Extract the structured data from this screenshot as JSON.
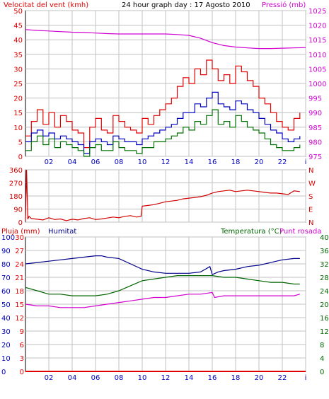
{
  "colors": {
    "wind": "#e00000",
    "gust": "#e00000",
    "avg": "#0000c0",
    "pressure": "#d000d0",
    "dir": "#d00000",
    "humidity": "#00008a",
    "temperature": "#006400",
    "dewpoint": "#d000d0",
    "rain": "#e00000",
    "grid": "#c0c0c0",
    "frame": "#000000"
  },
  "header": {
    "wind_title": "Velocitat del vent (kmh)",
    "center_title": "24 hour graph day : 17 Agosto 2010",
    "pressure_title": "Pressió (mb)"
  },
  "bottom_header": {
    "rain_title": "Pluja (mm)",
    "humidity_title": "Humitat",
    "temp_title": "Temperatura (°C)",
    "dew_title": "Punt rosada"
  },
  "x_ticks": [
    "02",
    "04",
    "06",
    "08",
    "10",
    "12",
    "14",
    "16",
    "18",
    "20",
    "22",
    "i"
  ],
  "chart_data": [
    {
      "type": "line",
      "panel": "wind",
      "x_range_hours": [
        0,
        24
      ],
      "grid": true,
      "y_left": {
        "label": "Velocitat del vent (kmh)",
        "range": [
          0,
          50
        ],
        "ticks": [
          "50",
          "45",
          "40",
          "35",
          "30",
          "25",
          "20",
          "15",
          "10",
          "5",
          "0"
        ]
      },
      "y_right": {
        "label": "Pressió (mb)",
        "range": [
          975,
          1025
        ],
        "ticks": [
          "1025",
          "1020",
          "1015",
          "1010",
          "1005",
          "1000",
          "995",
          "990",
          "985",
          "980",
          "975"
        ]
      },
      "series": [
        {
          "name": "gust",
          "axis": "left",
          "x": [
            0,
            0.5,
            1,
            1.5,
            2,
            2.5,
            3,
            3.5,
            4,
            4.5,
            5,
            5.5,
            6,
            6.5,
            7,
            7.5,
            8,
            8.5,
            9,
            9.5,
            10,
            10.5,
            11,
            11.5,
            12,
            12.5,
            13,
            13.5,
            14,
            14.5,
            15,
            15.5,
            16,
            16.5,
            17,
            17.5,
            18,
            18.5,
            19,
            19.5,
            20,
            20.5,
            21,
            21.5,
            22,
            22.5,
            23,
            23.5
          ],
          "values": [
            7,
            12,
            16,
            11,
            15,
            10,
            14,
            12,
            9,
            8,
            3,
            10,
            13,
            9,
            8,
            14,
            12,
            10,
            9,
            8,
            13,
            11,
            14,
            16,
            18,
            20,
            24,
            27,
            25,
            30,
            28,
            33,
            30,
            26,
            28,
            25,
            31,
            29,
            26,
            24,
            20,
            18,
            15,
            12,
            10,
            9,
            13,
            15
          ]
        },
        {
          "name": "avg",
          "axis": "left",
          "x": [
            0,
            0.5,
            1,
            1.5,
            2,
            2.5,
            3,
            3.5,
            4,
            4.5,
            5,
            5.5,
            6,
            6.5,
            7,
            7.5,
            8,
            8.5,
            9,
            9.5,
            10,
            10.5,
            11,
            11.5,
            12,
            12.5,
            13,
            13.5,
            14,
            14.5,
            15,
            15.5,
            16,
            16.5,
            17,
            17.5,
            18,
            18.5,
            19,
            19.5,
            20,
            20.5,
            21,
            21.5,
            22,
            22.5,
            23,
            23.5
          ],
          "values": [
            5,
            8,
            9,
            7,
            8,
            6,
            7,
            6,
            5,
            4,
            1,
            5,
            6,
            5,
            4,
            7,
            6,
            5,
            5,
            4,
            6,
            7,
            8,
            9,
            10,
            11,
            13,
            15,
            15,
            18,
            17,
            20,
            22,
            18,
            17,
            16,
            19,
            18,
            16,
            15,
            13,
            11,
            9,
            8,
            6,
            5,
            6,
            7
          ]
        },
        {
          "name": "wind",
          "axis": "left",
          "x": [
            0,
            0.5,
            1,
            1.5,
            2,
            2.5,
            3,
            3.5,
            4,
            4.5,
            5,
            5.5,
            6,
            6.5,
            7,
            7.5,
            8,
            8.5,
            9,
            9.5,
            10,
            10.5,
            11,
            11.5,
            12,
            12.5,
            13,
            13.5,
            14,
            14.5,
            15,
            15.5,
            16,
            16.5,
            17,
            17.5,
            18,
            18.5,
            19,
            19.5,
            20,
            20.5,
            21,
            21.5,
            22,
            22.5,
            23,
            23.5
          ],
          "values": [
            2,
            5,
            7,
            4,
            6,
            3,
            5,
            4,
            3,
            2,
            0,
            3,
            4,
            2,
            2,
            5,
            3,
            2,
            2,
            1,
            3,
            3,
            5,
            5,
            6,
            7,
            8,
            10,
            9,
            12,
            11,
            14,
            16,
            11,
            12,
            10,
            14,
            12,
            10,
            9,
            8,
            6,
            4,
            3,
            2,
            2,
            3,
            4
          ]
        },
        {
          "name": "pressure",
          "axis": "right",
          "x": [
            0,
            1,
            2,
            3,
            4,
            5,
            6,
            7,
            8,
            9,
            10,
            11,
            12,
            13,
            14,
            15,
            16,
            17,
            18,
            19,
            20,
            21,
            22,
            23,
            24
          ],
          "values": [
            1018.5,
            1018.2,
            1018,
            1017.8,
            1017.6,
            1017.5,
            1017.3,
            1017.1,
            1017,
            1017,
            1017,
            1017,
            1017,
            1016.8,
            1016.5,
            1015.5,
            1014,
            1013,
            1012.5,
            1012.2,
            1012,
            1012,
            1012.1,
            1012.2,
            1012.3
          ]
        }
      ]
    },
    {
      "type": "line",
      "panel": "direction",
      "x_range_hours": [
        0,
        24
      ],
      "grid": true,
      "y_left": {
        "range": [
          0,
          360
        ],
        "ticks": [
          "360",
          "270",
          "180",
          "90",
          "0"
        ]
      },
      "y_right_labels": [
        "N",
        "W",
        "S",
        "E",
        "N"
      ],
      "series": [
        {
          "name": "direction",
          "x": [
            0,
            0.1,
            0.2,
            0.3,
            0.5,
            1,
            1.5,
            2,
            2.5,
            3,
            3.5,
            4,
            4.5,
            5,
            5.5,
            6,
            6.5,
            7,
            7.5,
            8,
            8.5,
            9,
            9.5,
            9.9,
            10,
            10.5,
            11,
            11.5,
            12,
            12.5,
            13,
            13.5,
            14,
            14.5,
            15,
            15.5,
            16,
            16.5,
            17,
            17.5,
            18,
            18.5,
            19,
            19.5,
            20,
            20.5,
            21,
            21.5,
            22,
            22.5,
            23,
            23.5
          ],
          "values": [
            10,
            360,
            20,
            40,
            25,
            20,
            15,
            30,
            18,
            22,
            10,
            20,
            15,
            25,
            30,
            18,
            22,
            28,
            35,
            30,
            40,
            45,
            35,
            40,
            110,
            115,
            120,
            130,
            140,
            145,
            150,
            160,
            165,
            170,
            175,
            185,
            200,
            210,
            215,
            220,
            210,
            215,
            220,
            215,
            210,
            205,
            200,
            200,
            195,
            190,
            215,
            210
          ]
        }
      ]
    },
    {
      "type": "line",
      "panel": "humidity_temperature",
      "x_range_hours": [
        0,
        24
      ],
      "grid": true,
      "y_rain": {
        "label": "Pluja (mm)",
        "range": [
          0,
          30
        ],
        "ticks": [
          "30",
          "27",
          "24",
          "21",
          "18",
          "15",
          "12",
          "9",
          "6",
          "3",
          "0"
        ]
      },
      "y_humidity": {
        "label": "Humitat",
        "range": [
          0,
          100
        ],
        "ticks": [
          "100",
          "90",
          "80",
          "70",
          "60",
          "50",
          "40",
          "30",
          "20",
          "10",
          "0"
        ]
      },
      "y_temp": {
        "label": "Temperatura (°C)",
        "range": [
          0,
          40
        ],
        "ticks": [
          "40",
          "36",
          "32",
          "28",
          "24",
          "20",
          "16",
          "12",
          "8",
          "4",
          "0"
        ]
      },
      "series": [
        {
          "name": "humidity",
          "axis": "humidity",
          "x": [
            0,
            1,
            2,
            3,
            4,
            5,
            6,
            6.5,
            7,
            8,
            9,
            10,
            11,
            12,
            13,
            14,
            15,
            15.8,
            16,
            16.5,
            17,
            18,
            19,
            20,
            21,
            22,
            23,
            23.5
          ],
          "values": [
            80,
            81,
            82,
            83,
            84,
            85,
            86,
            86,
            85,
            84,
            80,
            76,
            74,
            73,
            73,
            73,
            74,
            78,
            72,
            74,
            75,
            76,
            78,
            79,
            81,
            83,
            84,
            84
          ]
        },
        {
          "name": "temperature",
          "axis": "temp",
          "x": [
            0,
            1,
            2,
            3,
            4,
            5,
            6,
            7,
            8,
            9,
            10,
            11,
            12,
            13,
            14,
            15,
            16,
            17,
            18,
            19,
            20,
            21,
            22,
            23,
            23.5
          ],
          "values": [
            25,
            24,
            23,
            23,
            22.5,
            22.5,
            22.5,
            23,
            24,
            25.5,
            27,
            27.5,
            28,
            28.5,
            28.5,
            28.5,
            28.5,
            28,
            28,
            27.5,
            27,
            26.5,
            26.5,
            26,
            26
          ]
        },
        {
          "name": "dewpoint",
          "axis": "temp",
          "x": [
            0,
            1,
            2,
            3,
            4,
            5,
            6,
            7,
            8,
            9,
            10,
            11,
            12,
            13,
            14,
            15,
            16,
            16.2,
            17,
            18,
            19,
            20,
            21,
            22,
            23,
            23.5
          ],
          "values": [
            20,
            19.5,
            19.5,
            19,
            19,
            19,
            19.5,
            20,
            20.5,
            21,
            21.5,
            22,
            22,
            22.5,
            23,
            23,
            23.5,
            22,
            22.5,
            22.5,
            22.5,
            22.5,
            22.5,
            22.5,
            22.5,
            23
          ]
        },
        {
          "name": "rain",
          "axis": "rain",
          "x": [
            0,
            24
          ],
          "values": [
            0,
            0
          ]
        }
      ]
    }
  ]
}
